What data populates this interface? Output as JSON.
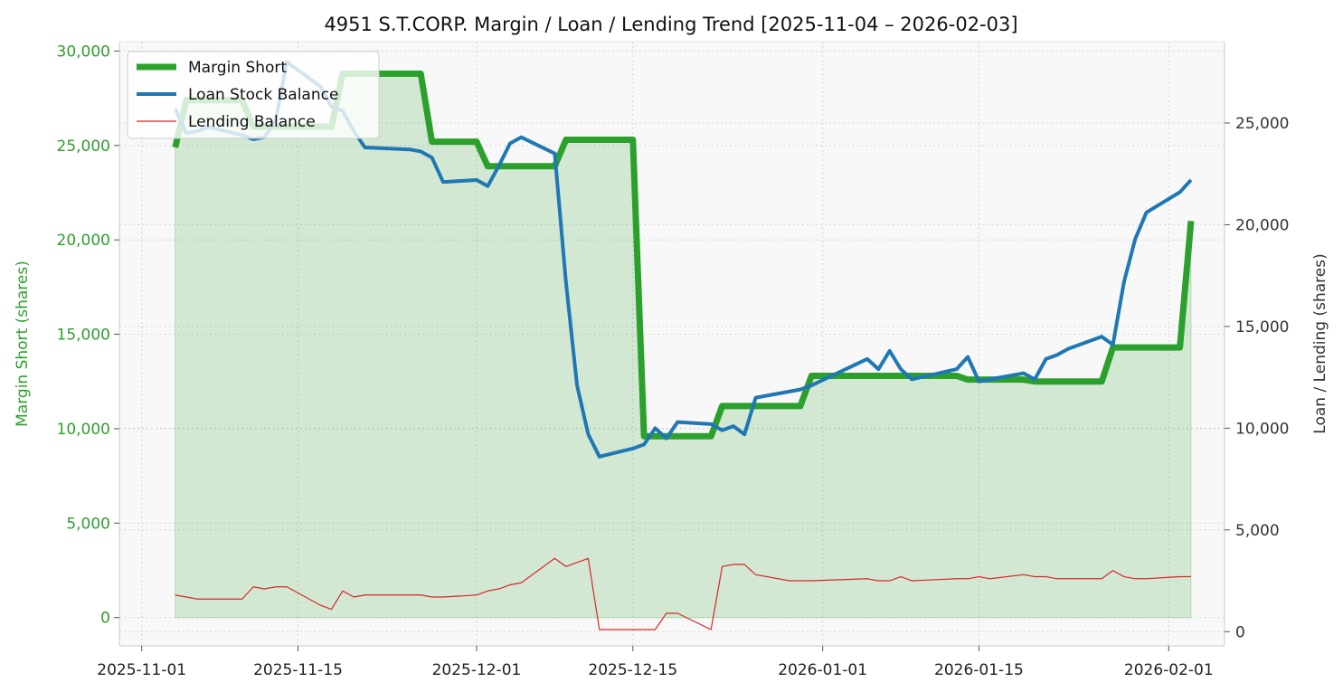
{
  "chart_data": {
    "type": "line",
    "title": "4951 S.T.CORP. Margin / Loan / Lending Trend [2025-11-04 – 2026-02-03]",
    "ylabel_left": "Margin Short (shares)",
    "ylabel_right": "Loan / Lending (shares)",
    "ylim_left": [
      -1500,
      30500
    ],
    "ylim_right": [
      -700,
      29000
    ],
    "yticks_left": [
      0,
      5000,
      10000,
      15000,
      20000,
      25000,
      30000
    ],
    "yticks_right": [
      0,
      5000,
      10000,
      15000,
      20000,
      25000
    ],
    "xlim": [
      "2025-10-30",
      "2026-02-06"
    ],
    "xticks": [
      "2025-11-01",
      "2025-11-15",
      "2025-12-01",
      "2025-12-15",
      "2026-01-01",
      "2026-01-15",
      "2026-02-01"
    ],
    "grid": true,
    "legend": "top-left",
    "colors": {
      "margin": "#2ca02c",
      "loan": "#1f77b4",
      "lending": "#d62728",
      "plot_bg": "#f8f8f8"
    },
    "series": [
      {
        "name": "Margin Short",
        "axis": "left",
        "style": "thick-line-area",
        "points": [
          [
            "2025-11-04",
            24900
          ],
          [
            "2025-11-05",
            27400
          ],
          [
            "2025-11-06",
            27400
          ],
          [
            "2025-11-07",
            27400
          ],
          [
            "2025-11-10",
            27400
          ],
          [
            "2025-11-11",
            26000
          ],
          [
            "2025-11-12",
            26000
          ],
          [
            "2025-11-13",
            26000
          ],
          [
            "2025-11-14",
            26000
          ],
          [
            "2025-11-17",
            26000
          ],
          [
            "2025-11-18",
            26000
          ],
          [
            "2025-11-19",
            28800
          ],
          [
            "2025-11-20",
            28800
          ],
          [
            "2025-11-21",
            28800
          ],
          [
            "2025-11-25",
            28800
          ],
          [
            "2025-11-26",
            28800
          ],
          [
            "2025-11-27",
            25200
          ],
          [
            "2025-11-28",
            25200
          ],
          [
            "2025-12-01",
            25200
          ],
          [
            "2025-12-02",
            23900
          ],
          [
            "2025-12-03",
            23900
          ],
          [
            "2025-12-04",
            23900
          ],
          [
            "2025-12-05",
            23900
          ],
          [
            "2025-12-08",
            23900
          ],
          [
            "2025-12-09",
            25300
          ],
          [
            "2025-12-10",
            25300
          ],
          [
            "2025-12-11",
            25300
          ],
          [
            "2025-12-12",
            25300
          ],
          [
            "2025-12-15",
            25300
          ],
          [
            "2025-12-16",
            9600
          ],
          [
            "2025-12-17",
            9600
          ],
          [
            "2025-12-18",
            9600
          ],
          [
            "2025-12-19",
            9600
          ],
          [
            "2025-12-22",
            9600
          ],
          [
            "2025-12-23",
            11200
          ],
          [
            "2025-12-24",
            11200
          ],
          [
            "2025-12-25",
            11200
          ],
          [
            "2025-12-26",
            11200
          ],
          [
            "2025-12-29",
            11200
          ],
          [
            "2025-12-30",
            11200
          ],
          [
            "2025-12-31",
            12800
          ],
          [
            "2026-01-05",
            12800
          ],
          [
            "2026-01-06",
            12800
          ],
          [
            "2026-01-07",
            12800
          ],
          [
            "2026-01-08",
            12800
          ],
          [
            "2026-01-09",
            12800
          ],
          [
            "2026-01-13",
            12800
          ],
          [
            "2026-01-14",
            12600
          ],
          [
            "2026-01-15",
            12600
          ],
          [
            "2026-01-16",
            12600
          ],
          [
            "2026-01-19",
            12600
          ],
          [
            "2026-01-20",
            12500
          ],
          [
            "2026-01-21",
            12500
          ],
          [
            "2026-01-22",
            12500
          ],
          [
            "2026-01-23",
            12500
          ],
          [
            "2026-01-26",
            12500
          ],
          [
            "2026-01-27",
            14300
          ],
          [
            "2026-01-28",
            14300
          ],
          [
            "2026-01-29",
            14300
          ],
          [
            "2026-01-30",
            14300
          ],
          [
            "2026-02-02",
            14300
          ],
          [
            "2026-02-03",
            21000
          ]
        ]
      },
      {
        "name": "Loan Stock Balance",
        "axis": "right",
        "style": "line",
        "points": [
          [
            "2025-11-04",
            25700
          ],
          [
            "2025-11-05",
            24500
          ],
          [
            "2025-11-06",
            24600
          ],
          [
            "2025-11-07",
            24800
          ],
          [
            "2025-11-10",
            24400
          ],
          [
            "2025-11-11",
            24200
          ],
          [
            "2025-11-12",
            24300
          ],
          [
            "2025-11-13",
            25100
          ],
          [
            "2025-11-14",
            28000
          ],
          [
            "2025-11-17",
            26800
          ],
          [
            "2025-11-18",
            25800
          ],
          [
            "2025-11-19",
            25600
          ],
          [
            "2025-11-20",
            24600
          ],
          [
            "2025-11-21",
            23800
          ],
          [
            "2025-11-25",
            23700
          ],
          [
            "2025-11-26",
            23600
          ],
          [
            "2025-11-27",
            23300
          ],
          [
            "2025-11-28",
            22100
          ],
          [
            "2025-12-01",
            22200
          ],
          [
            "2025-12-02",
            21900
          ],
          [
            "2025-12-03",
            22900
          ],
          [
            "2025-12-04",
            24000
          ],
          [
            "2025-12-05",
            24300
          ],
          [
            "2025-12-08",
            23500
          ],
          [
            "2025-12-09",
            17200
          ],
          [
            "2025-12-10",
            12100
          ],
          [
            "2025-12-11",
            9700
          ],
          [
            "2025-12-12",
            8600
          ],
          [
            "2025-12-15",
            9000
          ],
          [
            "2025-12-16",
            9200
          ],
          [
            "2025-12-17",
            10000
          ],
          [
            "2025-12-18",
            9500
          ],
          [
            "2025-12-19",
            10300
          ],
          [
            "2025-12-22",
            10200
          ],
          [
            "2025-12-23",
            9900
          ],
          [
            "2025-12-24",
            10100
          ],
          [
            "2025-12-25",
            9700
          ],
          [
            "2025-12-26",
            11500
          ],
          [
            "2025-12-29",
            11800
          ],
          [
            "2025-12-30",
            11900
          ],
          [
            "2025-12-31",
            12100
          ],
          [
            "2026-01-05",
            13400
          ],
          [
            "2026-01-06",
            12900
          ],
          [
            "2026-01-07",
            13800
          ],
          [
            "2026-01-08",
            12900
          ],
          [
            "2026-01-09",
            12400
          ],
          [
            "2026-01-13",
            12900
          ],
          [
            "2026-01-14",
            13500
          ],
          [
            "2026-01-15",
            12300
          ],
          [
            "2026-01-16",
            12400
          ],
          [
            "2026-01-19",
            12700
          ],
          [
            "2026-01-20",
            12400
          ],
          [
            "2026-01-21",
            13400
          ],
          [
            "2026-01-22",
            13600
          ],
          [
            "2026-01-23",
            13900
          ],
          [
            "2026-01-26",
            14500
          ],
          [
            "2026-01-27",
            14100
          ],
          [
            "2026-01-28",
            17200
          ],
          [
            "2026-01-29",
            19300
          ],
          [
            "2026-01-30",
            20600
          ],
          [
            "2026-02-02",
            21600
          ],
          [
            "2026-02-03",
            22200
          ]
        ]
      },
      {
        "name": "Lending Balance",
        "axis": "right",
        "style": "thin-line",
        "points": [
          [
            "2025-11-04",
            1800
          ],
          [
            "2025-11-05",
            1700
          ],
          [
            "2025-11-06",
            1600
          ],
          [
            "2025-11-07",
            1600
          ],
          [
            "2025-11-10",
            1600
          ],
          [
            "2025-11-11",
            2200
          ],
          [
            "2025-11-12",
            2100
          ],
          [
            "2025-11-13",
            2200
          ],
          [
            "2025-11-14",
            2200
          ],
          [
            "2025-11-17",
            1300
          ],
          [
            "2025-11-18",
            1100
          ],
          [
            "2025-11-19",
            2000
          ],
          [
            "2025-11-20",
            1700
          ],
          [
            "2025-11-21",
            1800
          ],
          [
            "2025-11-25",
            1800
          ],
          [
            "2025-11-26",
            1800
          ],
          [
            "2025-11-27",
            1700
          ],
          [
            "2025-11-28",
            1700
          ],
          [
            "2025-12-01",
            1800
          ],
          [
            "2025-12-02",
            2000
          ],
          [
            "2025-12-03",
            2100
          ],
          [
            "2025-12-04",
            2300
          ],
          [
            "2025-12-05",
            2400
          ],
          [
            "2025-12-08",
            3600
          ],
          [
            "2025-12-09",
            3200
          ],
          [
            "2025-12-10",
            3400
          ],
          [
            "2025-12-11",
            3600
          ],
          [
            "2025-12-12",
            100
          ],
          [
            "2025-12-15",
            100
          ],
          [
            "2025-12-16",
            100
          ],
          [
            "2025-12-17",
            100
          ],
          [
            "2025-12-18",
            900
          ],
          [
            "2025-12-19",
            900
          ],
          [
            "2025-12-22",
            100
          ],
          [
            "2025-12-23",
            3200
          ],
          [
            "2025-12-24",
            3300
          ],
          [
            "2025-12-25",
            3300
          ],
          [
            "2025-12-26",
            2800
          ],
          [
            "2025-12-29",
            2500
          ],
          [
            "2025-12-30",
            2500
          ],
          [
            "2025-12-31",
            2500
          ],
          [
            "2026-01-05",
            2600
          ],
          [
            "2026-01-06",
            2500
          ],
          [
            "2026-01-07",
            2500
          ],
          [
            "2026-01-08",
            2700
          ],
          [
            "2026-01-09",
            2500
          ],
          [
            "2026-01-13",
            2600
          ],
          [
            "2026-01-14",
            2600
          ],
          [
            "2026-01-15",
            2700
          ],
          [
            "2026-01-16",
            2600
          ],
          [
            "2026-01-19",
            2800
          ],
          [
            "2026-01-20",
            2700
          ],
          [
            "2026-01-21",
            2700
          ],
          [
            "2026-01-22",
            2600
          ],
          [
            "2026-01-23",
            2600
          ],
          [
            "2026-01-26",
            2600
          ],
          [
            "2026-01-27",
            3000
          ],
          [
            "2026-01-28",
            2700
          ],
          [
            "2026-01-29",
            2600
          ],
          [
            "2026-01-30",
            2600
          ],
          [
            "2026-02-02",
            2700
          ],
          [
            "2026-02-03",
            2700
          ]
        ]
      }
    ]
  }
}
